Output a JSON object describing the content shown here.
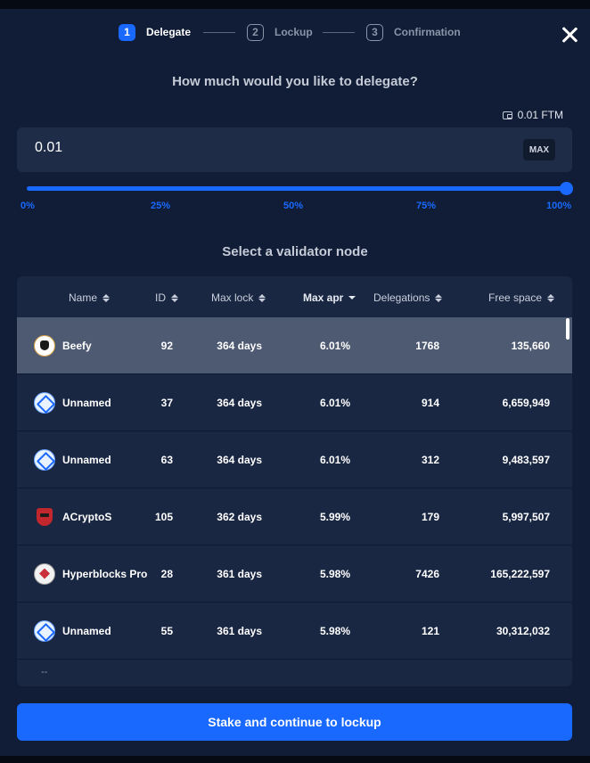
{
  "stepper": {
    "steps": [
      {
        "num": "1",
        "label": "Delegate"
      },
      {
        "num": "2",
        "label": "Lockup"
      },
      {
        "num": "3",
        "label": "Confirmation"
      }
    ],
    "active_step": 1
  },
  "delegate": {
    "question": "How much would you like to delegate?",
    "balance": "0.01 FTM",
    "amount_value": "0.01",
    "max_label": "MAX",
    "slider_percent": 100,
    "slider_ticks": [
      "0%",
      "25%",
      "50%",
      "75%",
      "100%"
    ]
  },
  "validators": {
    "title": "Select a validator node",
    "columns": {
      "name": "Name",
      "id": "ID",
      "max_lock": "Max lock",
      "max_apr": "Max apr",
      "delegations": "Delegations",
      "free_space": "Free space"
    },
    "rows": [
      {
        "icon": "beefy-logo-icon",
        "name": "Beefy",
        "id": "92",
        "max_lock": "364 days",
        "max_apr": "6.01%",
        "delegations": "1768",
        "free_space": "135,660",
        "selected": true
      },
      {
        "icon": "unnamed-validator-icon",
        "name": "Unnamed",
        "id": "37",
        "max_lock": "364 days",
        "max_apr": "6.01%",
        "delegations": "914",
        "free_space": "6,659,949",
        "selected": false
      },
      {
        "icon": "unnamed-validator-icon",
        "name": "Unnamed",
        "id": "63",
        "max_lock": "364 days",
        "max_apr": "6.01%",
        "delegations": "312",
        "free_space": "9,483,597",
        "selected": false
      },
      {
        "icon": "acryptos-logo-icon",
        "name": "ACryptoS",
        "id": "105",
        "max_lock": "362 days",
        "max_apr": "5.99%",
        "delegations": "179",
        "free_space": "5,997,507",
        "selected": false
      },
      {
        "icon": "hyperblocks-logo-icon",
        "name": "Hyperblocks Pro",
        "id": "28",
        "max_lock": "361 days",
        "max_apr": "5.98%",
        "delegations": "7426",
        "free_space": "165,222,597",
        "selected": false
      },
      {
        "icon": "unnamed-validator-icon",
        "name": "Unnamed",
        "id": "55",
        "max_lock": "361 days",
        "max_apr": "5.98%",
        "delegations": "121",
        "free_space": "30,312,032",
        "selected": false
      }
    ],
    "partial_row_text": "--"
  },
  "cta": {
    "label": "Stake and continue to lockup"
  },
  "colors": {
    "accent": "#1969ff",
    "background": "#111d36",
    "panel": "#1a2742",
    "selected_row": "#4e5a71"
  }
}
